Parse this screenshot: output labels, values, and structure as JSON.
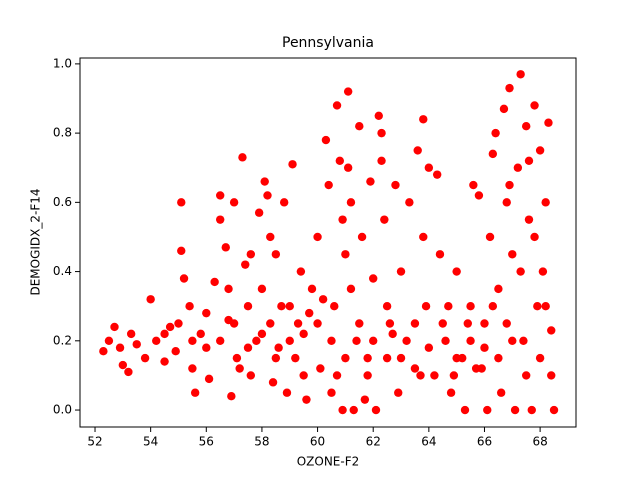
{
  "chart_data": {
    "type": "scatter",
    "title": "Pennsylvania",
    "xlabel": "OZONE-F2",
    "ylabel": "DEMOGIDX_2-F14",
    "color": "#ff0000",
    "x": [
      52.3,
      52.5,
      52.7,
      52.9,
      53.0,
      53.2,
      53.3,
      53.5,
      53.8,
      54.0,
      54.2,
      54.5,
      54.7,
      54.9,
      55.1,
      55.1,
      55.2,
      55.4,
      55.5,
      55.6,
      55.8,
      56.0,
      56.1,
      56.3,
      56.5,
      56.5,
      56.7,
      56.8,
      56.9,
      57.0,
      57.1,
      57.3,
      57.4,
      57.5,
      57.6,
      57.8,
      57.9,
      58.0,
      58.1,
      58.2,
      58.3,
      58.4,
      58.5,
      58.6,
      58.8,
      58.9,
      59.0,
      59.1,
      59.2,
      59.4,
      59.5,
      59.6,
      59.8,
      60.0,
      60.1,
      60.3,
      60.4,
      60.5,
      60.6,
      60.7,
      60.8,
      60.9,
      61.0,
      61.1,
      61.2,
      61.3,
      61.4,
      61.5,
      61.6,
      61.7,
      61.8,
      61.9,
      62.0,
      62.1,
      62.2,
      62.3,
      62.4,
      62.5,
      62.6,
      62.8,
      62.9,
      63.0,
      63.2,
      63.3,
      63.5,
      63.6,
      63.8,
      63.9,
      64.0,
      64.2,
      64.3,
      64.4,
      64.6,
      64.8,
      65.0,
      65.2,
      65.3,
      65.5,
      65.6,
      65.8,
      65.9,
      66.0,
      66.1,
      66.2,
      66.3,
      66.4,
      66.5,
      66.6,
      66.7,
      66.8,
      66.9,
      67.0,
      67.1,
      67.2,
      67.3,
      67.4,
      67.5,
      67.6,
      67.7,
      67.8,
      67.9,
      68.0,
      68.1,
      68.2,
      68.3,
      68.4,
      68.5,
      68.4,
      68.0,
      67.5,
      67.0,
      66.5,
      66.0,
      65.5,
      65.0,
      64.5,
      64.0,
      63.5,
      63.0,
      62.5,
      62.0,
      61.5,
      61.0,
      60.5,
      60.0,
      59.5,
      59.0,
      58.5,
      58.0,
      57.5,
      57.0,
      56.5,
      56.0,
      55.5,
      55.0,
      54.5,
      57.2,
      58.7,
      59.7,
      60.2,
      61.2,
      62.7,
      63.7,
      64.7,
      65.7,
      66.8,
      67.3,
      67.8,
      68.2,
      66.9,
      67.6,
      61.1,
      62.3,
      60.9,
      63.8,
      58.3,
      57.6,
      56.8,
      59.3,
      60.7,
      61.8,
      64.9,
      65.4,
      66.3
    ],
    "values": [
      0.17,
      0.2,
      0.24,
      0.18,
      0.13,
      0.11,
      0.22,
      0.19,
      0.15,
      0.32,
      0.2,
      0.14,
      0.24,
      0.17,
      0.6,
      0.46,
      0.38,
      0.3,
      0.12,
      0.05,
      0.22,
      0.18,
      0.09,
      0.37,
      0.55,
      0.62,
      0.47,
      0.26,
      0.04,
      0.6,
      0.15,
      0.73,
      0.42,
      0.3,
      0.1,
      0.2,
      0.57,
      0.35,
      0.66,
      0.62,
      0.25,
      0.08,
      0.45,
      0.18,
      0.6,
      0.05,
      0.3,
      0.71,
      0.15,
      0.4,
      0.22,
      0.03,
      0.35,
      0.5,
      0.12,
      0.78,
      0.65,
      0.05,
      0.3,
      0.88,
      0.72,
      0,
      0.45,
      0.92,
      0.6,
      0,
      0.2,
      0.82,
      0.5,
      0.03,
      0.1,
      0.66,
      0.38,
      0,
      0.85,
      0.8,
      0.55,
      0.15,
      0.25,
      0.65,
      0.05,
      0.4,
      0.2,
      0.6,
      0.12,
      0.75,
      0.84,
      0.3,
      0.7,
      0.1,
      0.68,
      0.45,
      0.2,
      0.05,
      0.4,
      0.15,
      0,
      0.3,
      0.65,
      0.62,
      0.12,
      0.25,
      0,
      0.5,
      0.74,
      0.8,
      0.35,
      0.05,
      0.87,
      0.6,
      0.93,
      0.45,
      0,
      0.7,
      0.97,
      0.2,
      0.82,
      0.55,
      0,
      0.88,
      0.3,
      0.75,
      0.4,
      0.6,
      0.83,
      0.1,
      0,
      0.23,
      0.15,
      0.1,
      0.2,
      0.15,
      0.18,
      0.2,
      0.15,
      0.25,
      0.18,
      0.25,
      0.15,
      0.3,
      0.2,
      0.25,
      0.15,
      0.2,
      0.25,
      0.1,
      0.2,
      0.15,
      0.22,
      0.18,
      0.25,
      0.2,
      0.28,
      0.2,
      0.25,
      0.22,
      0.12,
      0.3,
      0.28,
      0.32,
      0.35,
      0.22,
      0.1,
      0.3,
      0.12,
      0.25,
      0.4,
      0.5,
      0.3,
      0.65,
      0.72,
      0.7,
      0.72,
      0.55,
      0.5,
      0.5,
      0.45,
      0.35,
      0.25,
      0.1,
      0.15,
      0.1,
      0.25,
      0.3
    ],
    "xlim": [
      51.46,
      69.29
    ],
    "ylim": [
      -0.049,
      1.017
    ],
    "xticks": [
      52,
      54,
      56,
      58,
      60,
      62,
      64,
      66,
      68
    ],
    "yticks": [
      {
        "value": 0,
        "label": "0.0"
      },
      0.2,
      0.4,
      0.6,
      0.8,
      {
        "value": 1,
        "label": "1.0"
      }
    ]
  }
}
